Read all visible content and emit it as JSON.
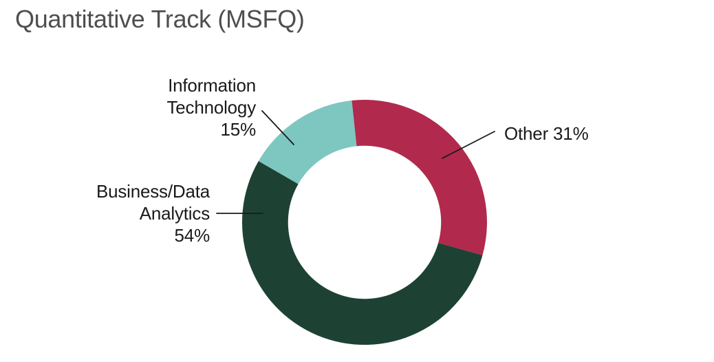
{
  "page": {
    "background": "#ffffff",
    "title": "Quantitative Track (MSFQ)"
  },
  "colors": {
    "title_text": "#4e4e4e",
    "label_text": "#1a1a1a",
    "leader_line": "#1a1a1a",
    "slice_other": "#b12a4d",
    "slice_business_data_analytics": "#1d4233",
    "slice_information_technology": "#7ec7c1"
  },
  "chart_data": {
    "type": "pie",
    "variant": "donut",
    "title": "Quantitative Track (MSFQ)",
    "unit": "%",
    "total": 100,
    "slices": [
      {
        "label": "Other",
        "value": 31,
        "color": "#b12a4d"
      },
      {
        "label": "Business/Data Analytics",
        "value": 54,
        "color": "#1d4233"
      },
      {
        "label": "Information Technology",
        "value": 15,
        "color": "#7ec7c1"
      }
    ],
    "start_angle_deg": -6,
    "direction": "clockwise",
    "inner_radius_ratio": 0.625,
    "legend": "none",
    "label_style": "outside-with-leader-lines"
  },
  "callouts": {
    "information_technology": {
      "lines": [
        "Information",
        "Technology",
        "15%"
      ]
    },
    "business_data_analytics": {
      "lines": [
        "Business/Data",
        "Analytics",
        "54%"
      ]
    },
    "other": {
      "lines": [
        "Other 31%"
      ]
    }
  }
}
